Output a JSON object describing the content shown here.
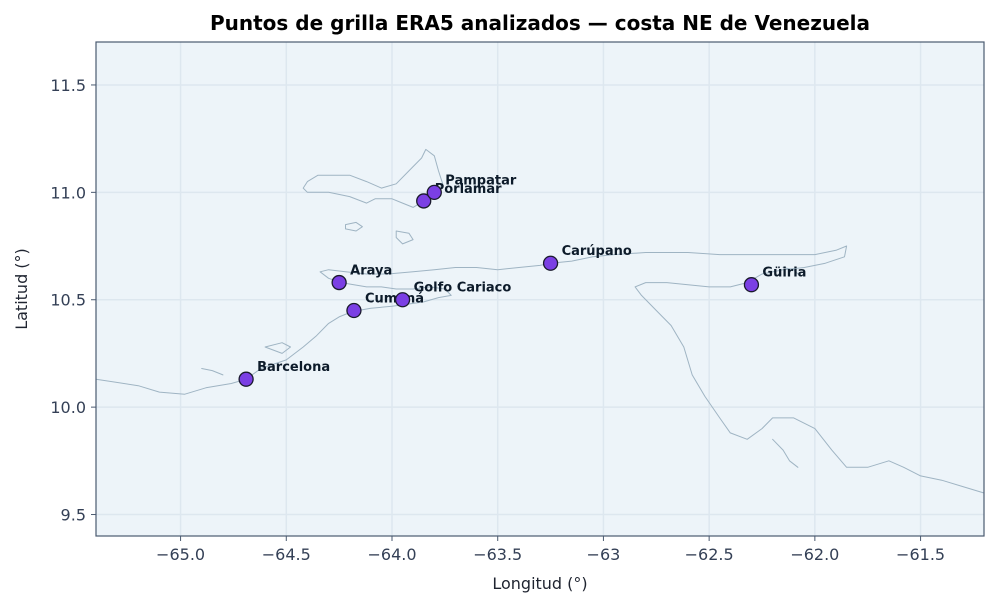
{
  "title": "Puntos de grilla ERA5 analizados — costa NE de Venezuela",
  "colors": {
    "plot_bg": "#edf4f9",
    "frame": "#4a5a70",
    "grid": "#dde7ef",
    "coastline": "#9fb4c3",
    "marker_fill": "#7b3fe4",
    "marker_edge": "#1a1a2e",
    "tick_text": "#344056"
  },
  "chart_data": {
    "type": "scatter",
    "xlabel": "Longitud (°)",
    "ylabel": "Latitud (°)",
    "xlim": [
      -65.4,
      -61.2
    ],
    "ylim": [
      9.4,
      11.7
    ],
    "xticks": [
      -65.0,
      -64.5,
      -64.0,
      -63.5,
      -63.0,
      -62.5,
      -62.0,
      -61.5
    ],
    "xtick_labels": [
      "−65.0",
      "−64.5",
      "−64.0",
      "−63.5",
      "−63",
      "−62.5",
      "−62.0",
      "−61.5"
    ],
    "yticks": [
      9.5,
      10.0,
      10.5,
      11.0,
      11.5
    ],
    "ytick_labels": [
      "9.5",
      "10.0",
      "10.5",
      "11.0",
      "11.5"
    ],
    "grid": true,
    "points": [
      {
        "name": "Barcelona",
        "lon": -64.69,
        "lat": 10.13
      },
      {
        "name": "Cumaná",
        "lon": -64.18,
        "lat": 10.45
      },
      {
        "name": "Araya",
        "lon": -64.25,
        "lat": 10.58
      },
      {
        "name": "Golfo Cariaco",
        "lon": -63.95,
        "lat": 10.5
      },
      {
        "name": "Carúpano",
        "lon": -63.25,
        "lat": 10.67
      },
      {
        "name": "Güiria",
        "lon": -62.3,
        "lat": 10.57
      },
      {
        "name": "Porlamar",
        "lon": -63.85,
        "lat": 10.96
      },
      {
        "name": "Pampatar",
        "lon": -63.8,
        "lat": 11.0
      }
    ],
    "coastlines": [
      [
        [
          -65.4,
          10.13
        ],
        [
          -65.2,
          10.1
        ],
        [
          -65.1,
          10.07
        ],
        [
          -64.98,
          10.06
        ],
        [
          -64.88,
          10.09
        ],
        [
          -64.76,
          10.11
        ],
        [
          -64.69,
          10.13
        ],
        [
          -64.62,
          10.18
        ],
        [
          -64.5,
          10.22
        ],
        [
          -64.42,
          10.28
        ],
        [
          -64.36,
          10.33
        ],
        [
          -64.3,
          10.39
        ],
        [
          -64.25,
          10.42
        ],
        [
          -64.2,
          10.44
        ],
        [
          -64.16,
          10.45
        ],
        [
          -64.1,
          10.46
        ],
        [
          -64.0,
          10.47
        ],
        [
          -63.92,
          10.48
        ],
        [
          -63.85,
          10.49
        ],
        [
          -63.78,
          10.51
        ],
        [
          -63.72,
          10.52
        ],
        [
          -63.75,
          10.55
        ],
        [
          -63.82,
          10.56
        ],
        [
          -63.9,
          10.55
        ],
        [
          -63.98,
          10.55
        ],
        [
          -64.05,
          10.56
        ],
        [
          -64.12,
          10.56
        ],
        [
          -64.18,
          10.57
        ],
        [
          -64.24,
          10.58
        ],
        [
          -64.3,
          10.6
        ],
        [
          -64.34,
          10.63
        ],
        [
          -64.3,
          10.64
        ],
        [
          -64.22,
          10.63
        ],
        [
          -64.12,
          10.62
        ],
        [
          -64.02,
          10.62
        ],
        [
          -63.9,
          10.63
        ],
        [
          -63.8,
          10.64
        ],
        [
          -63.7,
          10.65
        ],
        [
          -63.6,
          10.65
        ],
        [
          -63.5,
          10.64
        ],
        [
          -63.4,
          10.65
        ],
        [
          -63.3,
          10.66
        ],
        [
          -63.25,
          10.67
        ],
        [
          -63.15,
          10.68
        ],
        [
          -63.05,
          10.7
        ],
        [
          -62.95,
          10.71
        ],
        [
          -62.8,
          10.72
        ],
        [
          -62.6,
          10.72
        ],
        [
          -62.45,
          10.71
        ],
        [
          -62.3,
          10.71
        ],
        [
          -62.15,
          10.71
        ],
        [
          -62.0,
          10.71
        ],
        [
          -61.9,
          10.73
        ],
        [
          -61.85,
          10.75
        ],
        [
          -61.86,
          10.7
        ],
        [
          -61.95,
          10.67
        ],
        [
          -62.05,
          10.65
        ],
        [
          -62.15,
          10.64
        ],
        [
          -62.25,
          10.62
        ],
        [
          -62.32,
          10.58
        ],
        [
          -62.4,
          10.56
        ],
        [
          -62.5,
          10.56
        ],
        [
          -62.6,
          10.57
        ],
        [
          -62.7,
          10.58
        ],
        [
          -62.8,
          10.58
        ],
        [
          -62.85,
          10.56
        ],
        [
          -62.82,
          10.52
        ],
        [
          -62.75,
          10.45
        ],
        [
          -62.68,
          10.38
        ],
        [
          -62.62,
          10.28
        ],
        [
          -62.58,
          10.15
        ],
        [
          -62.52,
          10.05
        ],
        [
          -62.45,
          9.95
        ],
        [
          -62.4,
          9.88
        ],
        [
          -62.32,
          9.85
        ],
        [
          -62.25,
          9.9
        ],
        [
          -62.2,
          9.95
        ],
        [
          -62.1,
          9.95
        ],
        [
          -62.0,
          9.9
        ],
        [
          -61.92,
          9.8
        ],
        [
          -61.85,
          9.72
        ],
        [
          -61.75,
          9.72
        ],
        [
          -61.65,
          9.75
        ],
        [
          -61.58,
          9.72
        ],
        [
          -61.5,
          9.68
        ],
        [
          -61.4,
          9.66
        ],
        [
          -61.3,
          9.63
        ],
        [
          -61.2,
          9.6
        ]
      ],
      [
        [
          -64.4,
          11.05
        ],
        [
          -64.35,
          11.08
        ],
        [
          -64.2,
          11.08
        ],
        [
          -64.12,
          11.05
        ],
        [
          -64.05,
          11.02
        ],
        [
          -63.98,
          11.04
        ],
        [
          -63.92,
          11.1
        ],
        [
          -63.86,
          11.16
        ],
        [
          -63.84,
          11.2
        ],
        [
          -63.8,
          11.17
        ],
        [
          -63.78,
          11.1
        ],
        [
          -63.76,
          11.04
        ],
        [
          -63.8,
          11.0
        ],
        [
          -63.85,
          10.96
        ],
        [
          -63.9,
          10.93
        ],
        [
          -63.95,
          10.95
        ],
        [
          -64.0,
          10.97
        ],
        [
          -64.08,
          10.97
        ],
        [
          -64.12,
          10.95
        ],
        [
          -64.2,
          10.98
        ],
        [
          -64.3,
          11.0
        ],
        [
          -64.4,
          11.0
        ],
        [
          -64.42,
          11.02
        ],
        [
          -64.4,
          11.05
        ]
      ],
      [
        [
          -64.22,
          10.85
        ],
        [
          -64.17,
          10.86
        ],
        [
          -64.14,
          10.84
        ],
        [
          -64.17,
          10.82
        ],
        [
          -64.22,
          10.83
        ],
        [
          -64.22,
          10.85
        ]
      ],
      [
        [
          -63.98,
          10.82
        ],
        [
          -63.92,
          10.81
        ],
        [
          -63.9,
          10.78
        ],
        [
          -63.95,
          10.76
        ],
        [
          -63.98,
          10.79
        ],
        [
          -63.98,
          10.82
        ]
      ],
      [
        [
          -64.6,
          10.28
        ],
        [
          -64.52,
          10.3
        ],
        [
          -64.48,
          10.28
        ],
        [
          -64.52,
          10.25
        ],
        [
          -64.6,
          10.28
        ]
      ],
      [
        [
          -64.9,
          10.18
        ],
        [
          -64.85,
          10.17
        ],
        [
          -64.8,
          10.15
        ]
      ],
      [
        [
          -62.15,
          10.65
        ],
        [
          -62.1,
          10.64
        ],
        [
          -62.08,
          10.62
        ]
      ],
      [
        [
          -62.2,
          9.85
        ],
        [
          -62.15,
          9.8
        ],
        [
          -62.12,
          9.75
        ],
        [
          -62.08,
          9.72
        ]
      ]
    ]
  }
}
